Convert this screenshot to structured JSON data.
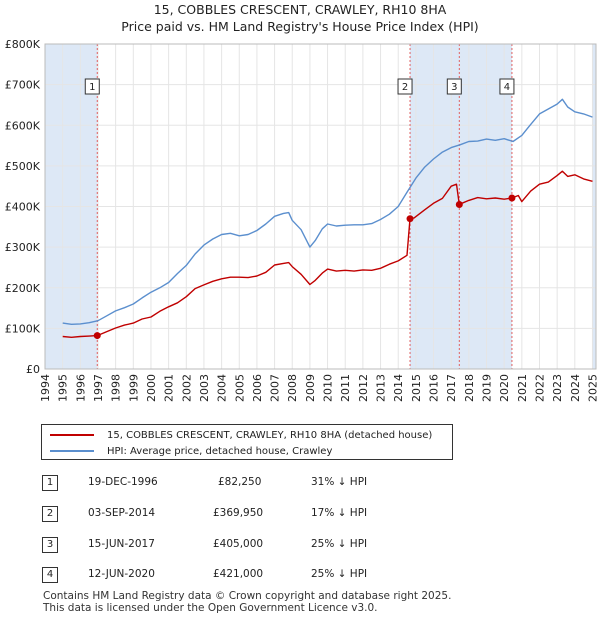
{
  "title": "15, COBBLES CRESCENT, CRAWLEY, RH10 8HA",
  "subtitle": "Price paid vs. HM Land Registry's House Price Index (HPI)",
  "colors": {
    "property": "#c00000",
    "hpi": "#5b8fce",
    "shade": "#dde8f6",
    "vline": "#e06060",
    "grid": "#e5e5e5"
  },
  "chart_data": {
    "type": "line",
    "xlim": [
      1994,
      2025.2
    ],
    "ylim": [
      0,
      800000
    ],
    "y_ticks": [
      {
        "v": 0,
        "label": "£0"
      },
      {
        "v": 100000,
        "label": "£100K"
      },
      {
        "v": 200000,
        "label": "£200K"
      },
      {
        "v": 300000,
        "label": "£300K"
      },
      {
        "v": 400000,
        "label": "£400K"
      },
      {
        "v": 500000,
        "label": "£500K"
      },
      {
        "v": 600000,
        "label": "£600K"
      },
      {
        "v": 700000,
        "label": "£700K"
      },
      {
        "v": 800000,
        "label": "£800K"
      }
    ],
    "x_ticks": [
      "1994",
      "1995",
      "1996",
      "1997",
      "1998",
      "1999",
      "2000",
      "2001",
      "2002",
      "2003",
      "2004",
      "2005",
      "2006",
      "2007",
      "2008",
      "2009",
      "2010",
      "2011",
      "2012",
      "2013",
      "2014",
      "2015",
      "2016",
      "2017",
      "2018",
      "2019",
      "2020",
      "2021",
      "2022",
      "2023",
      "2024",
      "2025"
    ],
    "series": [
      {
        "name": "15, COBBLES CRESCENT, CRAWLEY, RH10 8HA (detached house)",
        "color": "#c00000",
        "x": [
          1995.0,
          1995.5,
          1996.0,
          1996.5,
          1996.96,
          1997.5,
          1998.0,
          1998.5,
          1999.0,
          1999.5,
          2000.0,
          2000.5,
          2001.0,
          2001.5,
          2002.0,
          2002.5,
          2003.0,
          2003.5,
          2004.0,
          2004.5,
          2005.0,
          2005.5,
          2006.0,
          2006.5,
          2007.0,
          2007.5,
          2007.8,
          2008.0,
          2008.5,
          2009.0,
          2009.3,
          2009.7,
          2010.0,
          2010.5,
          2011.0,
          2011.5,
          2012.0,
          2012.5,
          2013.0,
          2013.5,
          2014.0,
          2014.5,
          2014.67,
          2014.9,
          2015.5,
          2016.0,
          2016.5,
          2017.0,
          2017.3,
          2017.46,
          2017.6,
          2018.0,
          2018.5,
          2019.0,
          2019.5,
          2020.0,
          2020.44,
          2020.8,
          2021.0,
          2021.5,
          2022.0,
          2022.5,
          2023.0,
          2023.3,
          2023.6,
          2024.0,
          2024.5,
          2025.0
        ],
        "y": [
          80000,
          78000,
          80000,
          81000,
          82250,
          92000,
          101000,
          108000,
          113000,
          123000,
          128000,
          142000,
          153000,
          163000,
          178000,
          198000,
          207000,
          216000,
          222000,
          226000,
          226000,
          225000,
          229000,
          238000,
          256000,
          260000,
          262000,
          252000,
          233000,
          208000,
          218000,
          236000,
          246000,
          241000,
          243000,
          241000,
          244000,
          243000,
          248000,
          258000,
          266000,
          280000,
          369950,
          372000,
          392000,
          408000,
          420000,
          450000,
          455000,
          405000,
          408000,
          415000,
          422000,
          419000,
          421000,
          418000,
          421000,
          427000,
          412000,
          438000,
          455000,
          460000,
          476000,
          487000,
          474000,
          478000,
          468000,
          462000
        ]
      },
      {
        "name": "HPI: Average price, detached house, Crawley",
        "color": "#5b8fce",
        "x": [
          1995.0,
          1995.5,
          1996.0,
          1996.5,
          1997.0,
          1997.5,
          1998.0,
          1998.5,
          1999.0,
          1999.5,
          2000.0,
          2000.5,
          2001.0,
          2001.5,
          2002.0,
          2002.5,
          2003.0,
          2003.5,
          2004.0,
          2004.5,
          2005.0,
          2005.5,
          2006.0,
          2006.5,
          2007.0,
          2007.5,
          2007.8,
          2008.0,
          2008.5,
          2009.0,
          2009.3,
          2009.7,
          2010.0,
          2010.5,
          2011.0,
          2011.5,
          2012.0,
          2012.5,
          2013.0,
          2013.5,
          2014.0,
          2014.5,
          2015.0,
          2015.5,
          2016.0,
          2016.5,
          2017.0,
          2017.5,
          2018.0,
          2018.5,
          2019.0,
          2019.5,
          2020.0,
          2020.5,
          2021.0,
          2021.5,
          2022.0,
          2022.5,
          2023.0,
          2023.3,
          2023.6,
          2024.0,
          2024.5,
          2025.0
        ],
        "y": [
          113000,
          110000,
          111000,
          114000,
          119000,
          131000,
          143000,
          151000,
          160000,
          175000,
          189000,
          200000,
          213000,
          235000,
          255000,
          283000,
          305000,
          320000,
          331000,
          334000,
          328000,
          331000,
          341000,
          357000,
          376000,
          383000,
          385000,
          366000,
          343000,
          300000,
          316000,
          345000,
          357000,
          352000,
          354000,
          355000,
          355000,
          358000,
          368000,
          381000,
          400000,
          435000,
          470000,
          497000,
          517000,
          534000,
          545000,
          552000,
          560000,
          561000,
          566000,
          563000,
          567000,
          560000,
          575000,
          602000,
          628000,
          640000,
          652000,
          664000,
          645000,
          633000,
          628000,
          620000
        ]
      }
    ],
    "sales": [
      {
        "id": "1",
        "x": 1996.96,
        "y": 82250
      },
      {
        "id": "2",
        "x": 2014.67,
        "y": 369950
      },
      {
        "id": "3",
        "x": 2017.46,
        "y": 405000
      },
      {
        "id": "4",
        "x": 2020.44,
        "y": 421000
      }
    ]
  },
  "legend": {
    "property": "15, COBBLES CRESCENT, CRAWLEY, RH10 8HA (detached house)",
    "hpi": "HPI: Average price, detached house, Crawley"
  },
  "transactions": [
    {
      "num": "1",
      "date": "19-DEC-1996",
      "price": "£82,250",
      "pct": "31% ↓ HPI"
    },
    {
      "num": "2",
      "date": "03-SEP-2014",
      "price": "£369,950",
      "pct": "17% ↓ HPI"
    },
    {
      "num": "3",
      "date": "15-JUN-2017",
      "price": "£405,000",
      "pct": "25% ↓ HPI"
    },
    {
      "num": "4",
      "date": "12-JUN-2020",
      "price": "£421,000",
      "pct": "25% ↓ HPI"
    }
  ],
  "footer": {
    "line1": "Contains HM Land Registry data © Crown copyright and database right 2025.",
    "line2": "This data is licensed under the Open Government Licence v3.0."
  }
}
